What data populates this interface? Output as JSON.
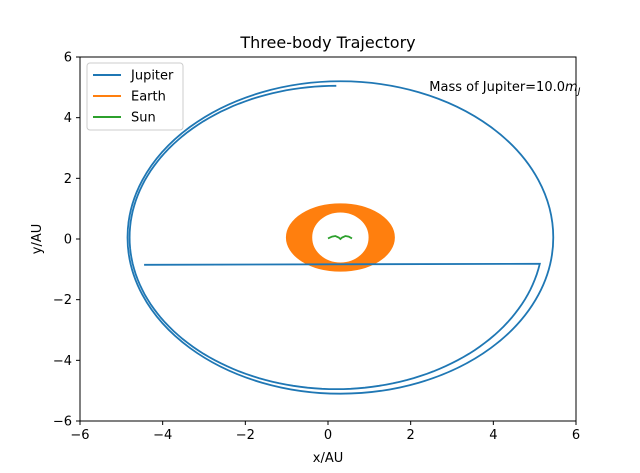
{
  "chart_data": {
    "type": "line",
    "title": "Three-body Trajectory",
    "xlabel": "x/AU",
    "ylabel": "y/AU",
    "xlim": [
      -6,
      6
    ],
    "ylim": [
      -6,
      6
    ],
    "xticks": [
      -6,
      -4,
      -2,
      0,
      2,
      4,
      6
    ],
    "yticks": [
      -6,
      -4,
      -2,
      0,
      2,
      4,
      6
    ],
    "xtick_labels": [
      "−6",
      "−4",
      "−2",
      "0",
      "2",
      "4",
      "6"
    ],
    "ytick_labels": [
      "−6",
      "−4",
      "−2",
      "0",
      "2",
      "4",
      "6"
    ],
    "grid": false,
    "legend_position": "top-left",
    "annotation": {
      "text_prefix": "Mass of Jupiter=10.0",
      "text_symbol": "m",
      "text_subscript": "J",
      "x": 2.45,
      "y": 5.05
    },
    "series": [
      {
        "name": "Jupiter",
        "color": "#1f77b4",
        "orbit_outer": {
          "cx": 0.3,
          "cy": 0.05,
          "rx": 5.15,
          "ry": 5.15,
          "start_deg": 0,
          "end_deg": 360
        },
        "orbit_inner": {
          "cx": 0.2,
          "cy": 0.05,
          "rx": 5.0,
          "ry": 5.0,
          "start_deg": 90,
          "end_deg": 190
        },
        "end_point": [
          -4.45,
          -0.85
        ]
      },
      {
        "name": "Earth",
        "color": "#ff7f0e",
        "band": {
          "cx": 0.3,
          "cy": 0.05,
          "outer_rx": 1.3,
          "outer_ry": 1.1,
          "inner_rx": 0.7,
          "inner_ry": 0.85
        }
      },
      {
        "name": "Sun",
        "color": "#2ca02c",
        "points": [
          [
            0.0,
            0.02
          ],
          [
            0.1,
            0.08
          ],
          [
            0.18,
            0.1
          ],
          [
            0.26,
            0.05
          ],
          [
            0.3,
            0.0
          ],
          [
            0.34,
            0.05
          ],
          [
            0.42,
            0.1
          ],
          [
            0.5,
            0.08
          ],
          [
            0.58,
            0.02
          ]
        ]
      }
    ]
  }
}
